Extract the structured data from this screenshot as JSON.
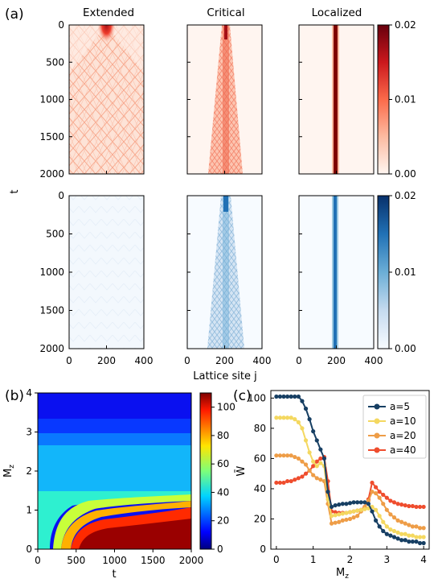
{
  "panel_labels": {
    "a": "(a)",
    "b": "(b)",
    "c": "(c)"
  },
  "chart_data": [
    {
      "type": "heatmap",
      "panel": "(a)",
      "columns": [
        "Extended",
        "Critical",
        "Localized"
      ],
      "rows": [
        "red colormap (top row)",
        "blue colormap (bottom row)"
      ],
      "xlabel": "Lattice site j",
      "ylabel": "t",
      "xlim": [
        0,
        400
      ],
      "ylim": [
        0,
        2000
      ],
      "yticks": [
        "0",
        "500",
        "1000",
        "1500",
        "2000"
      ],
      "xticks": [
        "0",
        "200",
        "400"
      ],
      "colorbar_ticks": [
        "0.02",
        "0.01",
        "0.00"
      ],
      "colormaps": {
        "top": "Reds",
        "bottom": "Blues"
      },
      "initial_site": 200
    },
    {
      "type": "heatmap",
      "panel": "(b)",
      "xlabel": "t",
      "ylabel": "M_z",
      "xlim": [
        0,
        2000
      ],
      "ylim": [
        0,
        4
      ],
      "xticks": [
        "0",
        "500",
        "1000",
        "1500",
        "2000"
      ],
      "yticks": [
        "0",
        "1",
        "2",
        "3",
        "4"
      ],
      "colorbar_ticks": [
        "0",
        "20",
        "40",
        "60",
        "80",
        "100"
      ],
      "colormap": "jet",
      "crange": [
        0,
        110
      ]
    },
    {
      "type": "line",
      "panel": "(c)",
      "xlabel": "M_z",
      "ylabel": "W̄",
      "xlim": [
        -0.15,
        4.15
      ],
      "ylim": [
        0,
        105
      ],
      "xticks": [
        "0",
        "1",
        "2",
        "3",
        "4"
      ],
      "yticks": [
        "0",
        "20",
        "40",
        "60",
        "80",
        "100"
      ],
      "legend_position": "top-right",
      "x": [
        0,
        0.1,
        0.2,
        0.3,
        0.4,
        0.5,
        0.6,
        0.7,
        0.8,
        0.9,
        1.0,
        1.1,
        1.2,
        1.3,
        1.4,
        1.5,
        1.6,
        1.7,
        1.8,
        1.9,
        2.0,
        2.1,
        2.2,
        2.3,
        2.4,
        2.5,
        2.6,
        2.7,
        2.8,
        2.9,
        3.0,
        3.1,
        3.2,
        3.3,
        3.4,
        3.5,
        3.6,
        3.7,
        3.8,
        3.9,
        4.0
      ],
      "series": [
        {
          "name": "a=5",
          "color": "#173f63",
          "values": [
            101,
            101,
            101,
            101,
            101,
            101,
            101,
            98,
            93,
            86,
            78,
            72,
            66,
            60,
            38,
            28,
            29,
            29.5,
            30,
            30,
            30.5,
            31,
            31,
            31,
            31,
            30,
            25,
            19,
            15,
            12,
            10,
            9,
            8,
            7,
            6,
            6,
            5,
            5,
            5,
            4,
            4
          ]
        },
        {
          "name": "a=10",
          "color": "#f4d860",
          "values": [
            87,
            87,
            87,
            87,
            87,
            86,
            84,
            80,
            72,
            64,
            58,
            55,
            57,
            55,
            33,
            22,
            22.5,
            23,
            23.5,
            24,
            24.5,
            25,
            25.5,
            26,
            26.5,
            27,
            28,
            26,
            22,
            18,
            15,
            13,
            12,
            11,
            10,
            10,
            9,
            9,
            8,
            8,
            8
          ]
        },
        {
          "name": "a=20",
          "color": "#ee9d47",
          "values": [
            62,
            62,
            62,
            62,
            62,
            61,
            60,
            58,
            56,
            52,
            49,
            47,
            46,
            45,
            30,
            17,
            17.5,
            18,
            19,
            19.5,
            20,
            21,
            22,
            25,
            28,
            32,
            38,
            37,
            34,
            30,
            26,
            23,
            21,
            19,
            18,
            17,
            16,
            15,
            15,
            14,
            14
          ]
        },
        {
          "name": "a=40",
          "color": "#ef4d2e",
          "values": [
            44,
            44,
            44,
            45,
            45,
            46,
            47,
            48,
            50,
            52,
            55,
            58,
            60,
            61,
            45,
            25,
            24.5,
            24,
            24,
            24,
            24.5,
            25,
            25.5,
            26,
            28,
            33,
            44,
            41,
            38,
            36,
            34,
            32,
            31,
            30,
            29.5,
            29,
            28.5,
            28.5,
            28,
            28,
            28
          ]
        }
      ]
    }
  ]
}
